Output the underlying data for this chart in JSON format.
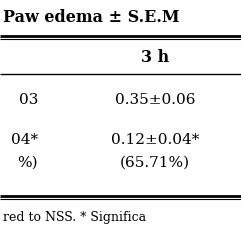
{
  "title_col": "Paw edema ± S.E.M",
  "subheader": "3 h",
  "row1_left": "03",
  "row1_right": "0.35±0.06",
  "row2a_left": "04*",
  "row2a_right": "0.12±0.04*",
  "row2b_left": "%)",
  "row2b_right": "(65.71%)",
  "footer": "red to NSS. * Significa",
  "bg_color": "#ffffff",
  "text_color": "#000000",
  "line_color": "#000000",
  "title_fontsize": 11.5,
  "subheader_fontsize": 11.5,
  "body_fontsize": 11,
  "footer_fontsize": 9
}
